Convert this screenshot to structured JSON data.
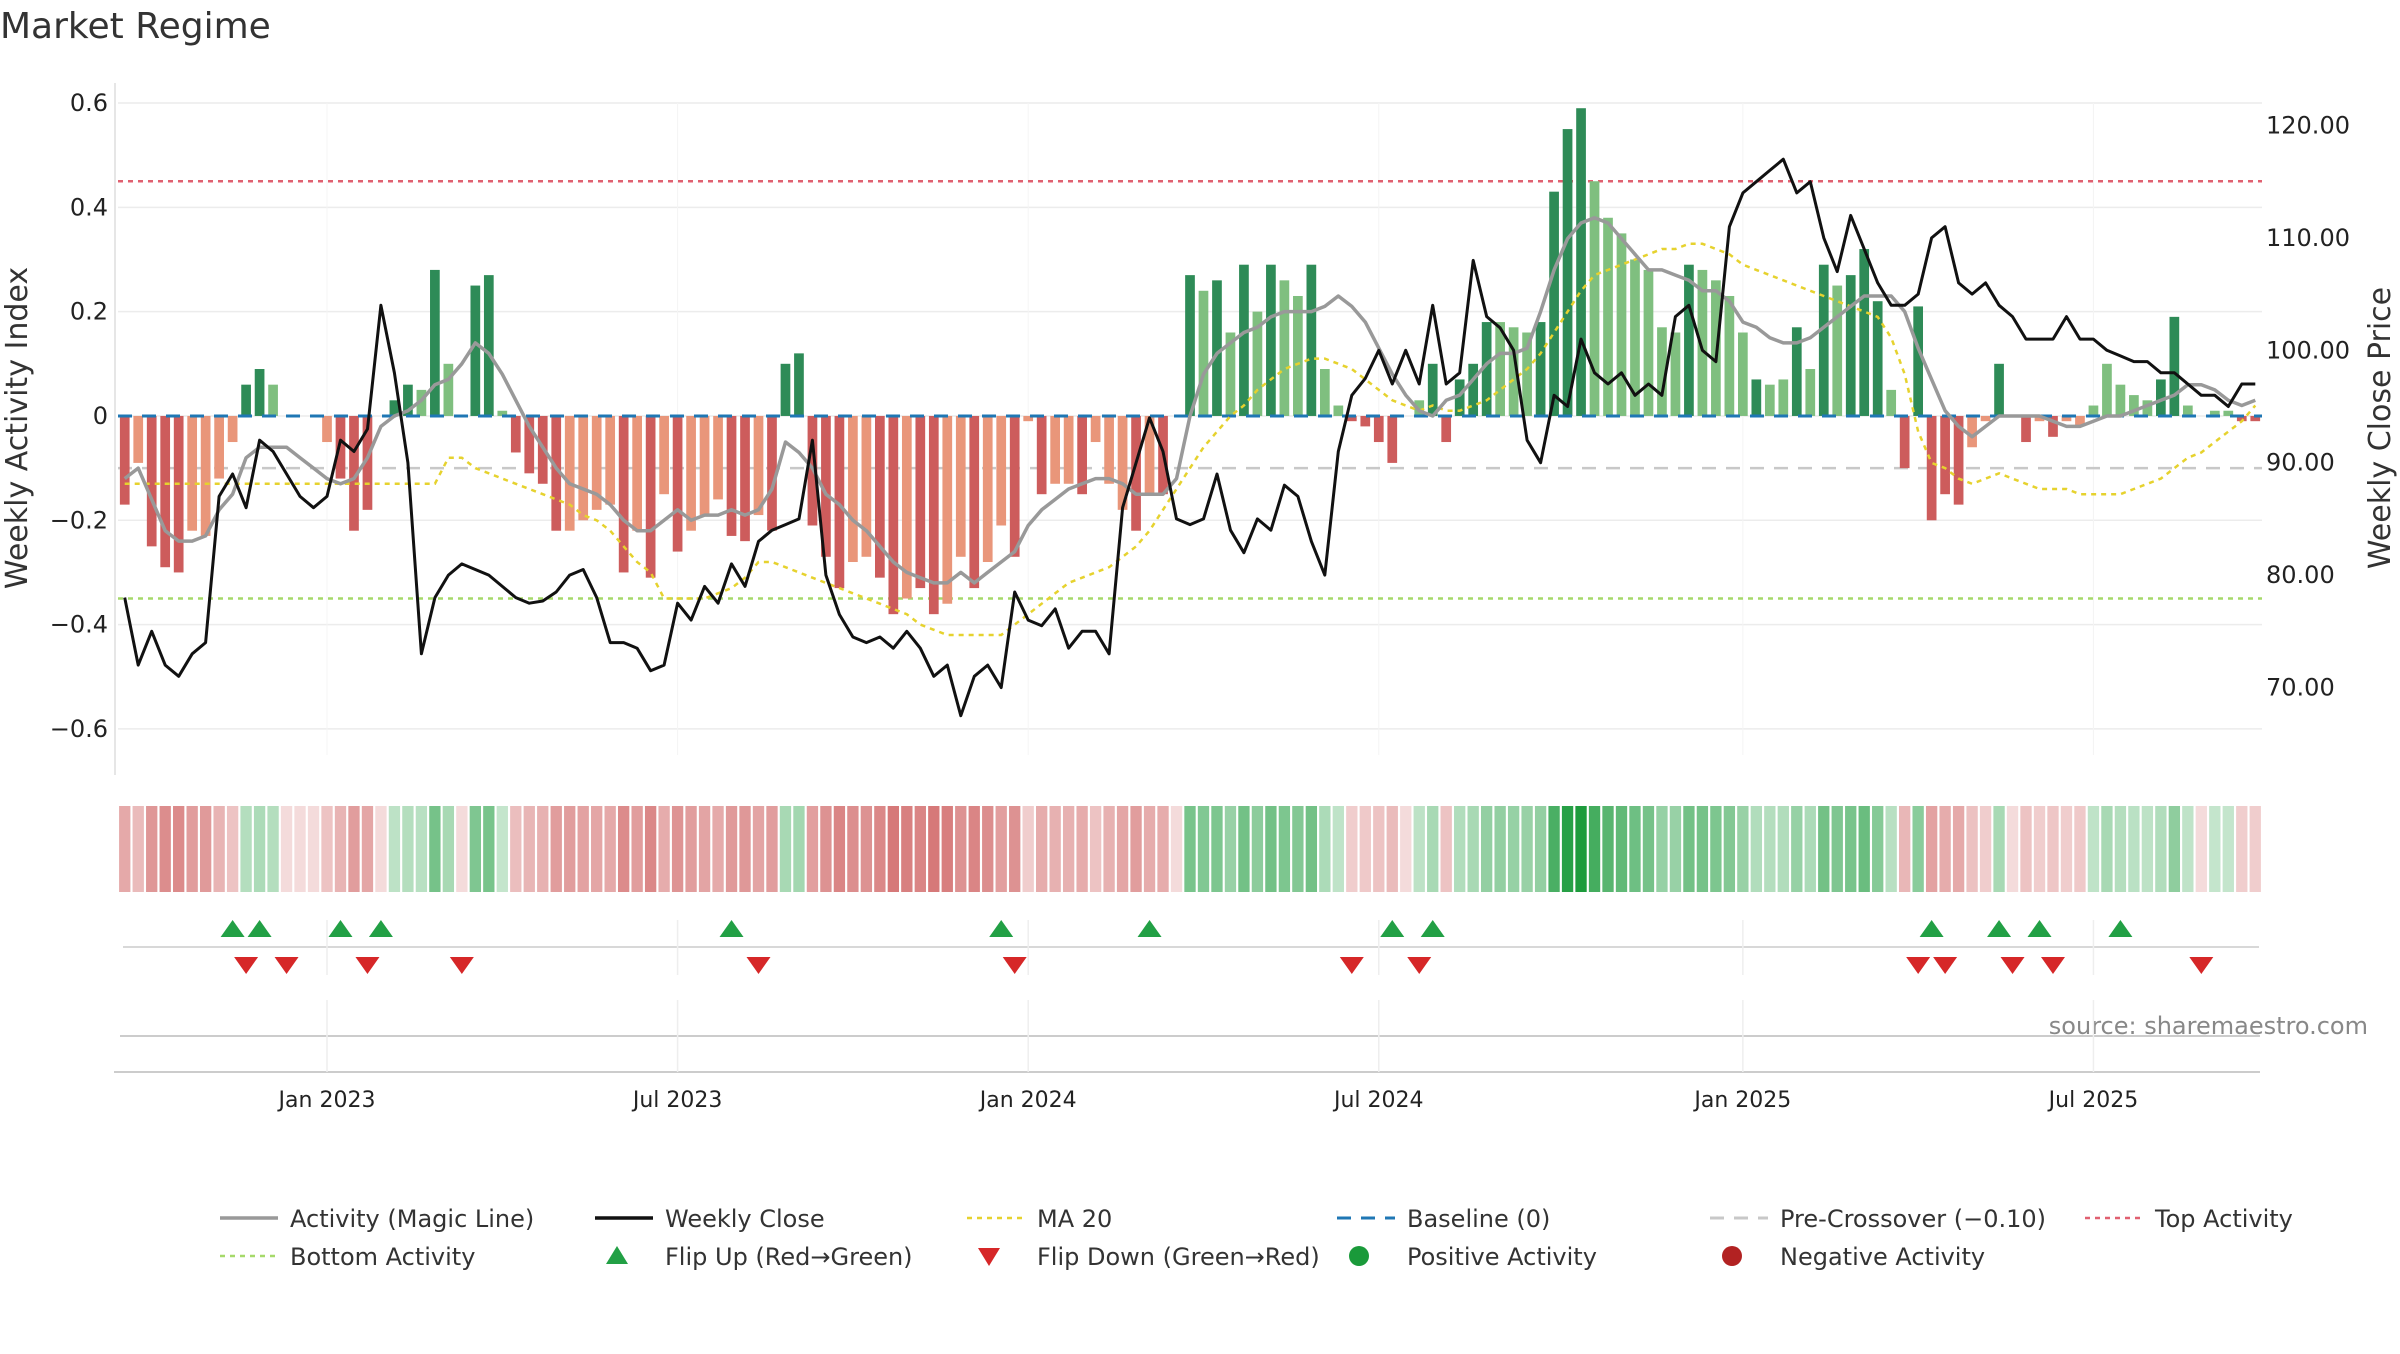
{
  "chart_data": {
    "type": "bar",
    "title": "Market Regime",
    "ylabel_left": "Weekly Activity Index",
    "ylabel_right": "Weekly Close Price",
    "ylim_left": [
      -0.65,
      0.6
    ],
    "ylim_right": [
      64,
      122
    ],
    "yticks_left": [
      {
        "v": 0.6,
        "label": "0.6"
      },
      {
        "v": 0.4,
        "label": "0.4"
      },
      {
        "v": 0.2,
        "label": "0.2"
      },
      {
        "v": 0,
        "label": "0"
      },
      {
        "v": -0.2,
        "label": "−0.2"
      },
      {
        "v": -0.4,
        "label": "−0.4"
      },
      {
        "v": -0.6,
        "label": "−0.6"
      }
    ],
    "yticks_right": [
      {
        "v": 120,
        "label": "120.00"
      },
      {
        "v": 110,
        "label": "110.00"
      },
      {
        "v": 100,
        "label": "100.00"
      },
      {
        "v": 90,
        "label": "90.00"
      },
      {
        "v": 80,
        "label": "80.00"
      },
      {
        "v": 70,
        "label": "70.00"
      }
    ],
    "xticks": [
      {
        "week": 15,
        "label": "Jan 2023"
      },
      {
        "week": 41,
        "label": "Jul 2023"
      },
      {
        "week": 67,
        "label": "Jan 2024"
      },
      {
        "week": 93,
        "label": "Jul 2024"
      },
      {
        "week": 120,
        "label": "Jan 2025"
      },
      {
        "week": 146,
        "label": "Jul 2025"
      }
    ],
    "source_text": "source: sharemaestro.com",
    "reference_lines": {
      "top_activity": 0.45,
      "bottom_activity": -0.35,
      "baseline": 0,
      "pre_crossover": -0.1
    },
    "colors": {
      "strong_pos": "#2e8b57",
      "weak_pos": "#7fbf7f",
      "strong_neg": "#cd5c5c",
      "weak_neg": "#e9967a",
      "magic_line": "#999999",
      "weekly_close": "#111111",
      "ma20": "#e6d22e",
      "baseline": "#1f77b4",
      "pre_crossover": "#c8c8c8",
      "top_activity": "#e06070",
      "bottom_activity": "#a6d96a",
      "flip_up": "#22a045",
      "flip_down": "#d62728",
      "positive_activity": "#1a9a3a",
      "negative_activity": "#b22222"
    },
    "weeks_count": 159,
    "activity_series": [
      {
        "from": 0,
        "to": 9,
        "values": [
          -0.17,
          -0.09,
          -0.25,
          -0.29,
          -0.3,
          -0.22,
          -0.23,
          -0.12,
          -0.05,
          0.06
        ]
      },
      {
        "from": 10,
        "to": 19,
        "values": [
          0.09,
          0.06,
          0,
          0,
          0,
          -0.05,
          -0.12,
          -0.22,
          -0.18,
          0
        ]
      },
      {
        "from": 20,
        "to": 29,
        "values": [
          0.03,
          0.06,
          0.05,
          0.28,
          0.1,
          0,
          0.25,
          0.27,
          0.01,
          -0.07
        ]
      },
      {
        "from": 30,
        "to": 39,
        "values": [
          -0.11,
          -0.13,
          -0.22,
          -0.22,
          -0.2,
          -0.18,
          -0.17,
          -0.3,
          -0.22,
          -0.31
        ]
      },
      {
        "from": 40,
        "to": 49,
        "values": [
          -0.15,
          -0.26,
          -0.22,
          -0.19,
          -0.16,
          -0.23,
          -0.24,
          -0.19,
          -0.22,
          0.1
        ]
      },
      {
        "from": 50,
        "to": 59,
        "values": [
          0.12,
          -0.21,
          -0.27,
          -0.33,
          -0.28,
          -0.27,
          -0.31,
          -0.38,
          -0.35,
          -0.33
        ]
      },
      {
        "from": 60,
        "to": 69,
        "values": [
          -0.38,
          -0.36,
          -0.27,
          -0.33,
          -0.28,
          -0.21,
          -0.27,
          -0.01,
          -0.15,
          -0.13
        ]
      },
      {
        "from": 70,
        "to": 79,
        "values": [
          -0.13,
          -0.15,
          -0.05,
          -0.13,
          -0.18,
          -0.22,
          -0.15,
          -0.15,
          0,
          0.27
        ]
      },
      {
        "from": 80,
        "to": 89,
        "values": [
          0.24,
          0.26,
          0.16,
          0.29,
          0.2,
          0.29,
          0.26,
          0.23,
          0.29,
          0.09
        ]
      },
      {
        "from": 90,
        "to": 99,
        "values": [
          0.02,
          -0.01,
          -0.02,
          -0.05,
          -0.09,
          0,
          0.03,
          0.1,
          -0.05,
          0.07
        ]
      },
      {
        "from": 100,
        "to": 109,
        "values": [
          0.1,
          0.18,
          0.18,
          0.17,
          0.16,
          0.18,
          0.43,
          0.55,
          0.59,
          0.45
        ]
      },
      {
        "from": 110,
        "to": 119,
        "values": [
          0.38,
          0.35,
          0.3,
          0.28,
          0.17,
          0.16,
          0.29,
          0.28,
          0.26,
          0.23
        ]
      },
      {
        "from": 120,
        "to": 129,
        "values": [
          0.16,
          0.07,
          0.06,
          0.07,
          0.17,
          0.09,
          0.29,
          0.25,
          0.27,
          0.32
        ]
      },
      {
        "from": 130,
        "to": 139,
        "values": [
          0.22,
          0.05,
          -0.1,
          0.21,
          -0.2,
          -0.15,
          -0.17,
          -0.06,
          -0.01,
          0.1
        ]
      },
      {
        "from": 140,
        "to": 149,
        "values": [
          0,
          -0.05,
          -0.01,
          -0.04,
          -0.01,
          -0.02,
          0.02,
          0.1,
          0.06,
          0.04
        ]
      },
      {
        "from": 150,
        "to": 158,
        "values": [
          0.03,
          0.07,
          0.19,
          0.02,
          0,
          0.01,
          0.01,
          -0.01,
          -0.01
        ]
      }
    ],
    "strength_series": [
      {
        "from": 0,
        "to": 29,
        "values": [
          1,
          0,
          1,
          1,
          1,
          0,
          0,
          0,
          0,
          1,
          1,
          0,
          0,
          0,
          0,
          0,
          1,
          1,
          1,
          0,
          1,
          1,
          0,
          1,
          0,
          0,
          1,
          1,
          0,
          1
        ]
      },
      {
        "from": 30,
        "to": 59,
        "values": [
          1,
          1,
          1,
          0,
          0,
          0,
          0,
          1,
          0,
          1,
          0,
          1,
          0,
          0,
          0,
          1,
          1,
          0,
          1,
          1,
          1,
          1,
          1,
          1,
          0,
          0,
          1,
          1,
          0,
          1
        ]
      },
      {
        "from": 60,
        "to": 89,
        "values": [
          1,
          0,
          0,
          1,
          0,
          0,
          1,
          0,
          1,
          0,
          0,
          1,
          0,
          0,
          0,
          1,
          0,
          1,
          0,
          1,
          0,
          1,
          0,
          1,
          0,
          1,
          0,
          0,
          1,
          0
        ]
      },
      {
        "from": 90,
        "to": 119,
        "values": [
          0,
          1,
          1,
          1,
          1,
          0,
          0,
          1,
          1,
          1,
          1,
          1,
          0,
          0,
          0,
          1,
          1,
          1,
          1,
          0,
          0,
          0,
          0,
          0,
          0,
          0,
          1,
          0,
          0,
          0
        ]
      },
      {
        "from": 120,
        "to": 158,
        "values": [
          0,
          1,
          0,
          0,
          1,
          0,
          1,
          0,
          1,
          1,
          1,
          0,
          1,
          1,
          1,
          1,
          1,
          0,
          0,
          1,
          0,
          1,
          0,
          1,
          0,
          0,
          0,
          0,
          0,
          0,
          0,
          1,
          1,
          0,
          0,
          0,
          0,
          1,
          1
        ]
      }
    ],
    "magic_line_series": [
      {
        "from": 0,
        "to": 29,
        "values": [
          -0.12,
          -0.1,
          -0.16,
          -0.22,
          -0.24,
          -0.24,
          -0.23,
          -0.18,
          -0.15,
          -0.08,
          -0.06,
          -0.06,
          -0.06,
          -0.08,
          -0.1,
          -0.12,
          -0.13,
          -0.12,
          -0.08,
          -0.02,
          0,
          0.01,
          0.03,
          0.06,
          0.07,
          0.1,
          0.14,
          0.12,
          0.08,
          0.03
        ]
      },
      {
        "from": 30,
        "to": 59,
        "values": [
          -0.02,
          -0.06,
          -0.1,
          -0.13,
          -0.14,
          -0.15,
          -0.17,
          -0.2,
          -0.22,
          -0.22,
          -0.2,
          -0.18,
          -0.2,
          -0.19,
          -0.19,
          -0.18,
          -0.19,
          -0.18,
          -0.14,
          -0.05,
          -0.07,
          -0.1,
          -0.15,
          -0.17,
          -0.2,
          -0.22,
          -0.25,
          -0.28,
          -0.3,
          -0.31
        ]
      },
      {
        "from": 60,
        "to": 89,
        "values": [
          -0.32,
          -0.32,
          -0.3,
          -0.32,
          -0.3,
          -0.28,
          -0.26,
          -0.21,
          -0.18,
          -0.16,
          -0.14,
          -0.13,
          -0.12,
          -0.12,
          -0.13,
          -0.15,
          -0.15,
          -0.15,
          -0.12,
          0,
          0.08,
          0.12,
          0.14,
          0.16,
          0.17,
          0.19,
          0.2,
          0.2,
          0.2,
          0.21
        ]
      },
      {
        "from": 90,
        "to": 119,
        "values": [
          0.23,
          0.21,
          0.18,
          0.13,
          0.08,
          0.04,
          0.01,
          0,
          0.03,
          0.04,
          0.07,
          0.1,
          0.12,
          0.12,
          0.13,
          0.2,
          0.28,
          0.34,
          0.37,
          0.38,
          0.37,
          0.34,
          0.31,
          0.28,
          0.28,
          0.27,
          0.26,
          0.24,
          0.24,
          0.22
        ]
      },
      {
        "from": 120,
        "to": 158,
        "values": [
          0.18,
          0.17,
          0.15,
          0.14,
          0.14,
          0.15,
          0.17,
          0.19,
          0.21,
          0.23,
          0.23,
          0.23,
          0.2,
          0.13,
          0.07,
          0.01,
          -0.02,
          -0.04,
          -0.02,
          0,
          0,
          0,
          0,
          -0.01,
          -0.02,
          -0.02,
          -0.01,
          0,
          0,
          0.01,
          0.02,
          0.03,
          0.04,
          0.06,
          0.06,
          0.05,
          0.03,
          0.02,
          0.03
        ]
      }
    ],
    "weekly_close_series": [
      {
        "from": 0,
        "to": 29,
        "values": [
          78,
          72,
          75,
          72,
          71,
          73,
          74,
          87,
          89,
          86,
          92,
          91,
          89,
          87,
          86,
          87,
          92,
          91,
          93,
          104,
          98,
          90,
          73,
          78,
          80,
          81,
          80.5,
          80,
          79,
          78
        ]
      },
      {
        "from": 30,
        "to": 59,
        "values": [
          77.5,
          77.7,
          78.5,
          80,
          80.5,
          78,
          74,
          74,
          73.5,
          71.5,
          72,
          77.5,
          76,
          79,
          77.5,
          81,
          79,
          83,
          84,
          84.5,
          85,
          92,
          80,
          76.5,
          74.5,
          74,
          74.5,
          73.5,
          75,
          73.5
        ]
      },
      {
        "from": 60,
        "to": 89,
        "values": [
          71,
          72,
          67.5,
          71,
          72,
          70,
          78.5,
          76,
          75.5,
          77,
          73.5,
          75,
          75,
          73,
          86,
          90,
          94,
          91,
          85,
          84.5,
          85,
          89,
          84,
          82,
          85,
          84,
          88,
          87,
          83,
          80
        ]
      },
      {
        "from": 90,
        "to": 119,
        "values": [
          91,
          96,
          97.5,
          100,
          97,
          100,
          97,
          104,
          97,
          98,
          108,
          103,
          102,
          100,
          92,
          90,
          96,
          95,
          101,
          98,
          97,
          98,
          96,
          97,
          96,
          103,
          104,
          100,
          99,
          111
        ]
      },
      {
        "from": 120,
        "to": 158,
        "values": [
          114,
          115,
          116,
          117,
          114,
          115,
          110,
          107,
          112,
          109,
          106,
          104,
          104,
          105,
          110,
          111,
          106,
          105,
          106,
          104,
          103,
          101,
          101,
          101,
          103,
          101,
          101,
          100,
          99.5,
          99,
          99,
          98,
          98,
          97,
          96,
          96,
          95,
          97,
          97
        ]
      }
    ],
    "ma20_series": [
      {
        "from": 0,
        "to": 29,
        "values": [
          -0.13,
          -0.13,
          -0.13,
          -0.13,
          -0.13,
          -0.13,
          -0.13,
          -0.13,
          -0.13,
          -0.13,
          -0.13,
          -0.13,
          -0.13,
          -0.13,
          -0.13,
          -0.13,
          -0.13,
          -0.13,
          -0.13,
          -0.13,
          -0.13,
          -0.13,
          -0.13,
          -0.13,
          -0.08,
          -0.08,
          -0.1,
          -0.11,
          -0.12,
          -0.13
        ]
      },
      {
        "from": 30,
        "to": 59,
        "values": [
          -0.14,
          -0.15,
          -0.16,
          -0.17,
          -0.19,
          -0.2,
          -0.22,
          -0.25,
          -0.28,
          -0.3,
          -0.35,
          -0.35,
          -0.35,
          -0.35,
          -0.34,
          -0.33,
          -0.31,
          -0.28,
          -0.28,
          -0.29,
          -0.3,
          -0.31,
          -0.32,
          -0.33,
          -0.34,
          -0.35,
          -0.36,
          -0.37,
          -0.38,
          -0.4
        ]
      },
      {
        "from": 60,
        "to": 89,
        "values": [
          -0.41,
          -0.42,
          -0.42,
          -0.42,
          -0.42,
          -0.42,
          -0.4,
          -0.38,
          -0.36,
          -0.34,
          -0.32,
          -0.31,
          -0.3,
          -0.29,
          -0.27,
          -0.25,
          -0.22,
          -0.18,
          -0.14,
          -0.1,
          -0.06,
          -0.03,
          0,
          0.02,
          0.05,
          0.07,
          0.09,
          0.1,
          0.11,
          0.11
        ]
      },
      {
        "from": 90,
        "to": 119,
        "values": [
          0.1,
          0.09,
          0.07,
          0.05,
          0.03,
          0.02,
          0.01,
          0.02,
          0.01,
          0.01,
          0.02,
          0.03,
          0.05,
          0.07,
          0.09,
          0.12,
          0.16,
          0.2,
          0.24,
          0.27,
          0.28,
          0.29,
          0.3,
          0.31,
          0.32,
          0.32,
          0.33,
          0.33,
          0.32,
          0.31
        ]
      },
      {
        "from": 120,
        "to": 158,
        "values": [
          0.29,
          0.28,
          0.27,
          0.26,
          0.25,
          0.24,
          0.23,
          0.22,
          0.21,
          0.2,
          0.19,
          0.15,
          0.08,
          -0.03,
          -0.09,
          -0.1,
          -0.12,
          -0.13,
          -0.12,
          -0.11,
          -0.12,
          -0.13,
          -0.14,
          -0.14,
          -0.14,
          -0.15,
          -0.15,
          -0.15,
          -0.15,
          -0.14,
          -0.13,
          -0.12,
          -0.1,
          -0.08,
          -0.07,
          -0.05,
          -0.03,
          -0.01,
          0.02
        ]
      }
    ],
    "flip_up_weeks": [
      8,
      10,
      16,
      19,
      45,
      65,
      76,
      94,
      97,
      134,
      139,
      142,
      148
    ],
    "flip_down_weeks": [
      9,
      12,
      18,
      25,
      47,
      66,
      91,
      96,
      133,
      135,
      140,
      143,
      154
    ],
    "legend": [
      {
        "label": "Activity (Magic Line)",
        "style": "solid-line",
        "color_key": "magic_line"
      },
      {
        "label": "Weekly Close",
        "style": "solid-line",
        "color_key": "weekly_close"
      },
      {
        "label": "MA 20",
        "style": "dotted-line",
        "color_key": "ma20"
      },
      {
        "label": "Baseline (0)",
        "style": "dashed-line",
        "color_key": "baseline"
      },
      {
        "label": "Pre-Crossover (−0.10)",
        "style": "dashed-line",
        "color_key": "pre_crossover"
      },
      {
        "label": "Top Activity",
        "style": "dotted-line",
        "color_key": "top_activity"
      },
      {
        "label": "Bottom Activity",
        "style": "dotted-line",
        "color_key": "bottom_activity"
      },
      {
        "label": "Flip Up (Red→Green)",
        "style": "triangle-up",
        "color_key": "flip_up"
      },
      {
        "label": "Flip Down (Green→Red)",
        "style": "triangle-down",
        "color_key": "flip_down"
      },
      {
        "label": "Positive Activity",
        "style": "dot",
        "color_key": "positive_activity"
      },
      {
        "label": "Negative Activity",
        "style": "dot",
        "color_key": "negative_activity"
      }
    ]
  }
}
